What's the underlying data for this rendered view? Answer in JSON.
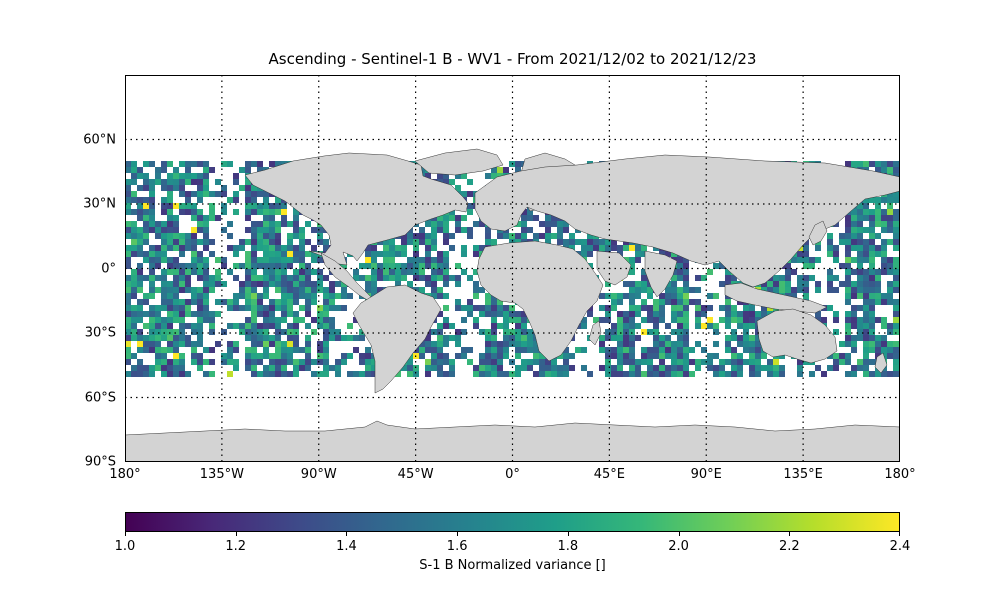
{
  "title": "Ascending - Sentinel-1 B - WV1 - From 2021/12/02 to 2021/12/23",
  "lat_labels": [
    {
      "label": "60°N",
      "lat": 60
    },
    {
      "label": "30°N",
      "lat": 30
    },
    {
      "label": "0°",
      "lat": 0
    },
    {
      "label": "30°S",
      "lat": -30
    },
    {
      "label": "60°S",
      "lat": -60
    },
    {
      "label": "90°S",
      "lat": -90
    }
  ],
  "lon_labels": [
    {
      "label": "180°",
      "lon": -180
    },
    {
      "label": "135°W",
      "lon": -135
    },
    {
      "label": "90°W",
      "lon": -90
    },
    {
      "label": "45°W",
      "lon": -45
    },
    {
      "label": "0°",
      "lon": 0
    },
    {
      "label": "45°E",
      "lon": 45
    },
    {
      "label": "90°E",
      "lon": 90
    },
    {
      "label": "135°E",
      "lon": 135
    },
    {
      "label": "180°",
      "lon": 180
    }
  ],
  "colorbar": {
    "label": "S-1 B Normalized variance []",
    "min": 1.0,
    "max": 2.4,
    "ticks": [
      "1.0",
      "1.2",
      "1.4",
      "1.6",
      "1.8",
      "2.0",
      "2.2",
      "2.4"
    ],
    "colormap": "viridis"
  },
  "map": {
    "lon_range": [
      -180,
      180
    ],
    "lat_range": [
      -90,
      90
    ],
    "land_color": "#d3d3d3",
    "coastline_color": "#333333",
    "gridlines": "dotted",
    "data_lat_range": [
      -50,
      50
    ]
  }
}
